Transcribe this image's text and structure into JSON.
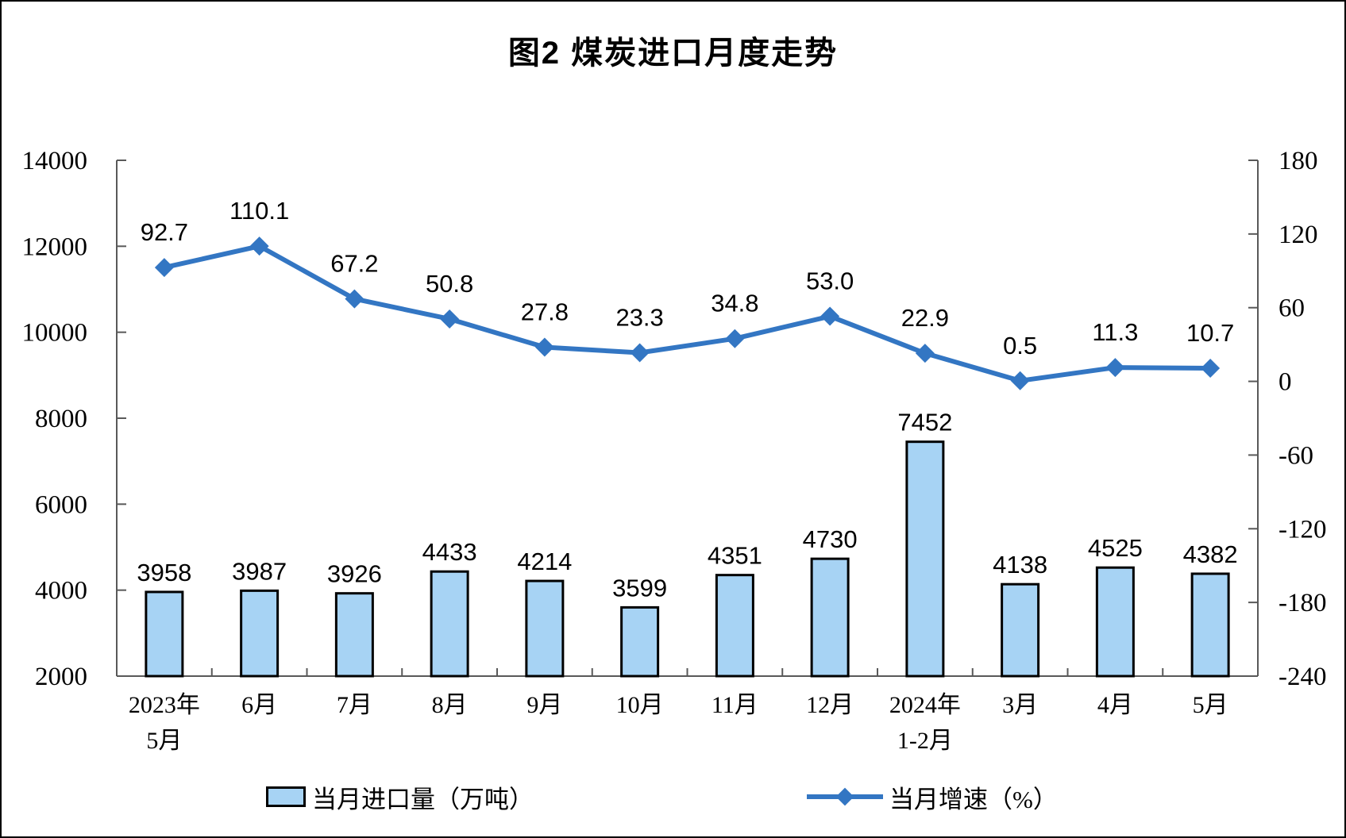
{
  "figure": {
    "title": "图2 煤炭进口月度走势"
  },
  "chart_data": {
    "type": "combo_bar_line",
    "title": "图2 煤炭进口月度走势",
    "categories": [
      [
        "2023年",
        "5月"
      ],
      [
        "6月"
      ],
      [
        "7月"
      ],
      [
        "8月"
      ],
      [
        "9月"
      ],
      [
        "10月"
      ],
      [
        "11月"
      ],
      [
        "12月"
      ],
      [
        "2024年",
        "1-2月"
      ],
      [
        "3月"
      ],
      [
        "4月"
      ],
      [
        "5月"
      ]
    ],
    "series": [
      {
        "name": "当月进口量（万吨）",
        "type": "bar",
        "axis": "left",
        "values": [
          3958,
          3987,
          3926,
          4433,
          4214,
          3599,
          4351,
          4730,
          7452,
          4138,
          4525,
          4382
        ],
        "labels": [
          "3958",
          "3987",
          "3926",
          "4433",
          "4214",
          "3599",
          "4351",
          "4730",
          "7452",
          "4138",
          "4525",
          "4382"
        ]
      },
      {
        "name": "当月增速（%）",
        "type": "line",
        "axis": "right",
        "values": [
          92.7,
          110.1,
          67.2,
          50.8,
          27.8,
          23.3,
          34.8,
          53.0,
          22.9,
          0.5,
          11.3,
          10.7
        ],
        "labels": [
          "92.7",
          "110.1",
          "67.2",
          "50.8",
          "27.8",
          "23.3",
          "34.8",
          "53.0",
          "22.9",
          "0.5",
          "11.3",
          "10.7"
        ]
      }
    ],
    "left_axis": {
      "min": 2000,
      "max": 14000,
      "ticks": [
        2000,
        4000,
        6000,
        8000,
        10000,
        12000,
        14000
      ]
    },
    "right_axis": {
      "min": -240,
      "max": 180,
      "ticks": [
        -240,
        -180,
        -120,
        -60,
        0,
        60,
        120,
        180
      ]
    },
    "grid": false,
    "legend_position": "bottom"
  },
  "colors": {
    "background": "#FFFFFF",
    "text": "#000000",
    "axis": "#595959",
    "bar_fill": "#A7D3F4",
    "bar_border": "#000000",
    "line": "#3376C3"
  }
}
